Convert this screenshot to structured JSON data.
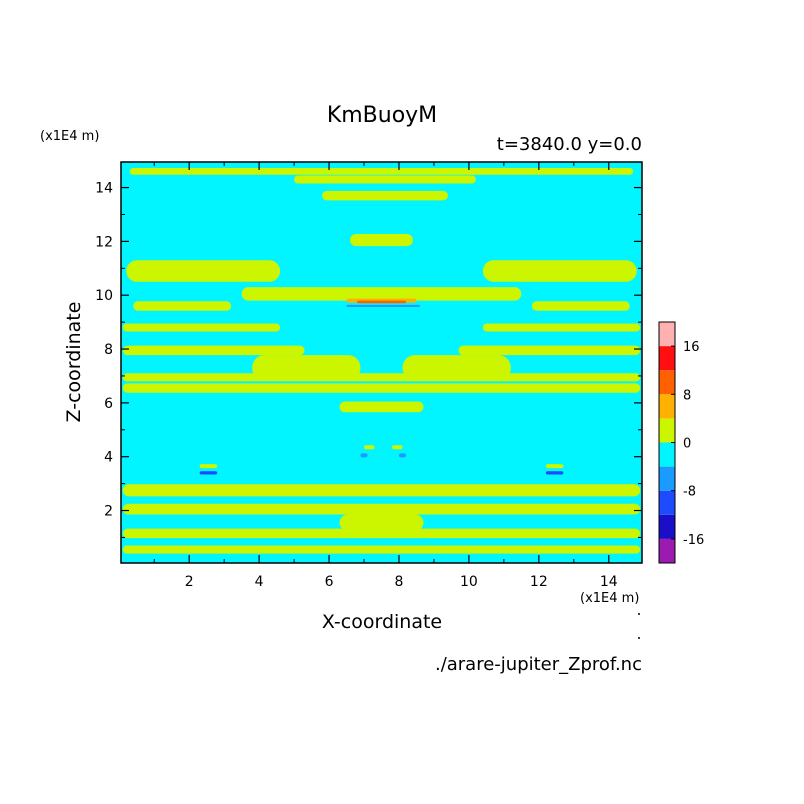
{
  "chart_data": {
    "type": "heatmap",
    "title": "KmBuoyM",
    "subtitle": "t=3840.0 y=0.0",
    "xlabel": "X-coordinate",
    "ylabel": "Z-coordinate",
    "x_unit": "(x1E4 m)",
    "y_unit": "(x1E4 m)",
    "source_file": "./arare-jupiter_Zprof.nc",
    "xlim": [
      0.05,
      14.95
    ],
    "ylim": [
      0.05,
      14.95
    ],
    "x_ticks": [
      2,
      4,
      6,
      8,
      10,
      12,
      14
    ],
    "y_ticks": [
      2,
      4,
      6,
      8,
      10,
      12,
      14
    ],
    "background_level": "0 to -4",
    "colorbar": {
      "levels": [
        -20,
        -16,
        -12,
        -8,
        -4,
        0,
        4,
        8,
        12,
        16,
        20
      ],
      "tick_labels": [
        "-16",
        "-8",
        "0",
        "8",
        "16"
      ],
      "tick_values": [
        -16,
        -8,
        0,
        8,
        16
      ],
      "colors": [
        "#9c1ab0",
        "#1a0fc8",
        "#1f4bff",
        "#1a9bff",
        "#00f5ff",
        "#ccf500",
        "#ffb000",
        "#ff6000",
        "#ff0f10",
        "#ffb0b0"
      ]
    },
    "regions": [
      {
        "level": 1,
        "z": 14.6,
        "x0": 0.3,
        "x1": 14.7,
        "thick": 0.25
      },
      {
        "level": 1,
        "z": 14.3,
        "x0": 5.0,
        "x1": 10.2,
        "thick": 0.3
      },
      {
        "level": 1,
        "z": 13.7,
        "x0": 5.8,
        "x1": 9.4,
        "thick": 0.35
      },
      {
        "level": 1,
        "z": 12.05,
        "x0": 6.6,
        "x1": 8.4,
        "thick": 0.45
      },
      {
        "level": 1,
        "z": 10.9,
        "x0": 0.2,
        "x1": 4.6,
        "thick": 0.8
      },
      {
        "level": 1,
        "z": 10.9,
        "x0": 10.4,
        "x1": 14.8,
        "thick": 0.8
      },
      {
        "level": 1,
        "z": 10.05,
        "x0": 3.5,
        "x1": 11.5,
        "thick": 0.5
      },
      {
        "level": 1,
        "z": 9.6,
        "x0": 0.4,
        "x1": 3.2,
        "thick": 0.35
      },
      {
        "level": 1,
        "z": 9.6,
        "x0": 11.8,
        "x1": 14.6,
        "thick": 0.35
      },
      {
        "level": 1,
        "z": 8.8,
        "x0": 0.1,
        "x1": 4.6,
        "thick": 0.3
      },
      {
        "level": 1,
        "z": 8.8,
        "x0": 10.4,
        "x1": 14.9,
        "thick": 0.3
      },
      {
        "level": 1,
        "z": 7.95,
        "x0": 0.1,
        "x1": 5.3,
        "thick": 0.35
      },
      {
        "level": 1,
        "z": 7.95,
        "x0": 9.7,
        "x1": 14.9,
        "thick": 0.35
      },
      {
        "level": 1,
        "z": 7.3,
        "x0": 3.8,
        "x1": 6.9,
        "thick": 0.95
      },
      {
        "level": 1,
        "z": 7.3,
        "x0": 8.1,
        "x1": 11.2,
        "thick": 0.95
      },
      {
        "level": 1,
        "z": 6.95,
        "x0": 0.1,
        "x1": 14.9,
        "thick": 0.3
      },
      {
        "level": 1,
        "z": 6.55,
        "x0": 0.1,
        "x1": 14.9,
        "thick": 0.35
      },
      {
        "level": 1,
        "z": 5.85,
        "x0": 6.3,
        "x1": 8.7,
        "thick": 0.4
      },
      {
        "level": 1,
        "z": 2.75,
        "x0": 0.1,
        "x1": 14.9,
        "thick": 0.45
      },
      {
        "level": 1,
        "z": 2.05,
        "x0": 0.1,
        "x1": 14.9,
        "thick": 0.4
      },
      {
        "level": 1,
        "z": 1.55,
        "x0": 6.3,
        "x1": 8.7,
        "thick": 0.6
      },
      {
        "level": 1,
        "z": 1.15,
        "x0": 0.1,
        "x1": 14.9,
        "thick": 0.35
      },
      {
        "level": 1,
        "z": 0.55,
        "x0": 0.1,
        "x1": 14.9,
        "thick": 0.3
      },
      {
        "level": 2,
        "z": 9.8,
        "x0": 6.5,
        "x1": 8.5,
        "thick": 0.15
      },
      {
        "level": 3,
        "z": 9.75,
        "x0": 6.8,
        "x1": 8.2,
        "thick": 0.1
      },
      {
        "level": -1,
        "z": 9.6,
        "x0": 6.5,
        "x1": 8.6,
        "thick": 0.08
      },
      {
        "level": 1,
        "z": 3.65,
        "x0": 2.3,
        "x1": 2.8,
        "thick": 0.15
      },
      {
        "level": 1,
        "z": 3.65,
        "x0": 12.2,
        "x1": 12.7,
        "thick": 0.15
      },
      {
        "level": -2,
        "z": 3.4,
        "x0": 2.3,
        "x1": 2.8,
        "thick": 0.12
      },
      {
        "level": -2,
        "z": 3.4,
        "x0": 12.2,
        "x1": 12.7,
        "thick": 0.12
      },
      {
        "level": 1,
        "z": 4.35,
        "x0": 7.0,
        "x1": 7.3,
        "thick": 0.15
      },
      {
        "level": 1,
        "z": 4.35,
        "x0": 7.8,
        "x1": 8.1,
        "thick": 0.15
      },
      {
        "level": -1,
        "z": 4.05,
        "x0": 6.9,
        "x1": 7.1,
        "thick": 0.15
      },
      {
        "level": -1,
        "z": 4.05,
        "x0": 8.0,
        "x1": 8.2,
        "thick": 0.15
      }
    ]
  }
}
